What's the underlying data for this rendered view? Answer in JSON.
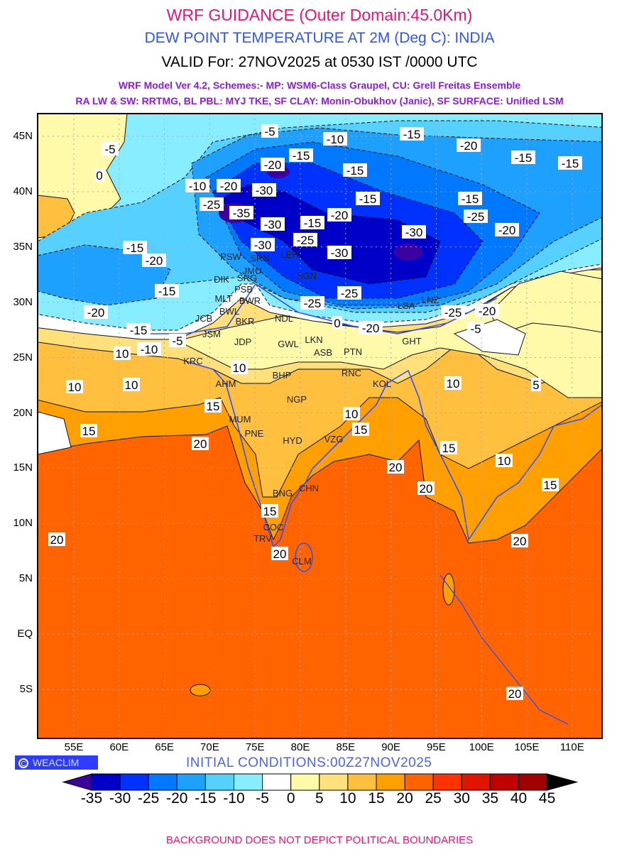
{
  "header": {
    "title": "WRF GUIDANCE (Outer Domain:45.0Km)",
    "subtitle": "DEW POINT TEMPERATURE AT 2M (Deg C): INDIA",
    "valid": "VALID For: 27NOV2025 at 0530 IST /0000 UTC",
    "model_line1": "WRF Model Ver 4.2, Schemes:- MP: WSM6-Class Graupel, CU: Grell Freitas Ensemble",
    "model_line2": "RA LW & SW: RRTMG, BL PBL: MYJ TKE, SF CLAY: Monin-Obukhov (Janic), SF SURFACE: Unified LSM"
  },
  "axes": {
    "lon_labels": [
      "55E",
      "60E",
      "65E",
      "70E",
      "75E",
      "80E",
      "85E",
      "90E",
      "95E",
      "100E",
      "105E",
      "110E"
    ],
    "lat_labels": [
      "45N",
      "40N",
      "35N",
      "30N",
      "25N",
      "20N",
      "15N",
      "10N",
      "5N",
      "EQ",
      "5S"
    ]
  },
  "contour_labels": [
    "-5",
    "-10",
    "-15",
    "-20",
    "-15",
    "-15",
    "-20",
    "-15",
    "-15",
    "-5",
    "0",
    "-10",
    "-20",
    "-25",
    "-35",
    "-30",
    "-15",
    "-20",
    "-15",
    "-25",
    "-20",
    "-30",
    "-30",
    "-25",
    "-15",
    "-30",
    "-30",
    "-15",
    "-20",
    "-15",
    "-25",
    "-25",
    "-20",
    "-15",
    "-10",
    "-5",
    "10",
    "-25",
    "-20",
    "-5",
    "0",
    "-20",
    "10",
    "10",
    "10",
    "10",
    "5",
    "15",
    "10",
    "15",
    "15",
    "20",
    "15",
    "20",
    "10",
    "20",
    "15",
    "15",
    "20",
    "20",
    "20",
    "20"
  ],
  "cities": [
    "PSW",
    "SRN",
    "LEH",
    "JMU",
    "DIK",
    "SRG",
    "PSB",
    "MLT",
    "BWR",
    "BWL",
    "SGN",
    "JCB",
    "BKR",
    "NDL",
    "LSA",
    "LNZ",
    "JSM",
    "JDP",
    "GWL",
    "LKN",
    "KRC",
    "AHM",
    "ASB",
    "PTN",
    "BHP",
    "RNC",
    "KOL",
    "GHT",
    "NGP",
    "MUM",
    "PNE",
    "HYD",
    "VZG",
    "BNG",
    "CHN",
    "COC",
    "TRV",
    "CLM"
  ],
  "logo": "WEACLIM",
  "logo_symbol": "C",
  "initial_conditions": "INITIAL CONDITIONS:00Z27NOV2025",
  "colorbar": {
    "labels": [
      "-35",
      "-30",
      "-25",
      "-20",
      "-15",
      "-10",
      "-5",
      "0",
      "5",
      "10",
      "15",
      "20",
      "25",
      "30",
      "35",
      "40",
      "45"
    ],
    "colors": [
      "#3c00a0",
      "#0000c8",
      "#0032ff",
      "#0078ff",
      "#1ea0ff",
      "#55d0ff",
      "#88eeff",
      "#ffffff",
      "#fffaaa",
      "#ffe07a",
      "#ffc040",
      "#ffa000",
      "#ff6400",
      "#ff3200",
      "#e11400",
      "#c00000",
      "#a00000",
      "#000000"
    ]
  },
  "footer": "BACKGROUND DOES NOT DEPICT POLITICAL BOUNDARIES"
}
